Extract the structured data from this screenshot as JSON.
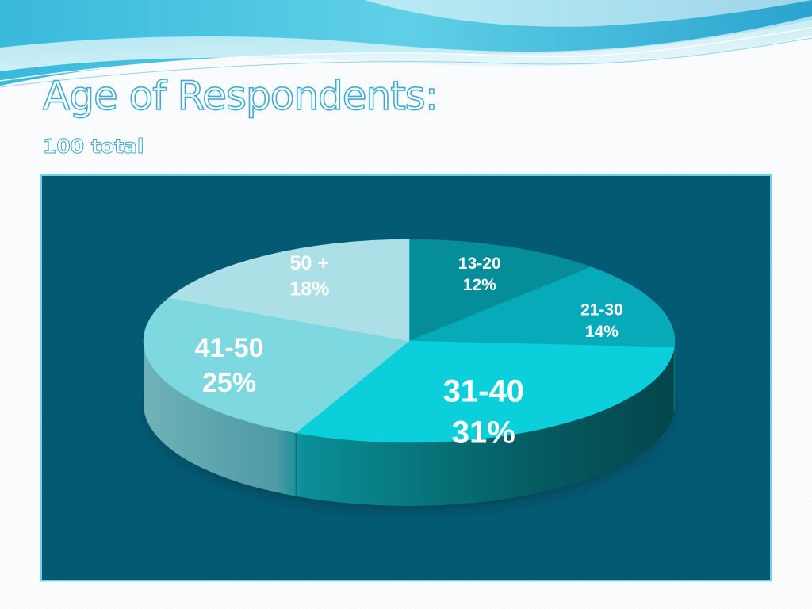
{
  "slide": {
    "title": "Age of Respondents:",
    "subtitle": "100 total"
  },
  "chart_data": {
    "type": "pie",
    "title": "Age of Respondents:",
    "subtitle": "100 total",
    "categories": [
      "13-20",
      "21-30",
      "31-40",
      "41-50",
      "50 +"
    ],
    "values": [
      12,
      14,
      31,
      25,
      18
    ],
    "labels": [
      "12%",
      "14%",
      "31%",
      "25%",
      "18%"
    ],
    "colors": [
      "#058e99",
      "#07aab8",
      "#0bd0dc",
      "#7dd8e0",
      "#ade0e6"
    ],
    "style": "3d-exploded-none",
    "legend": "none",
    "background": "#055a73"
  }
}
